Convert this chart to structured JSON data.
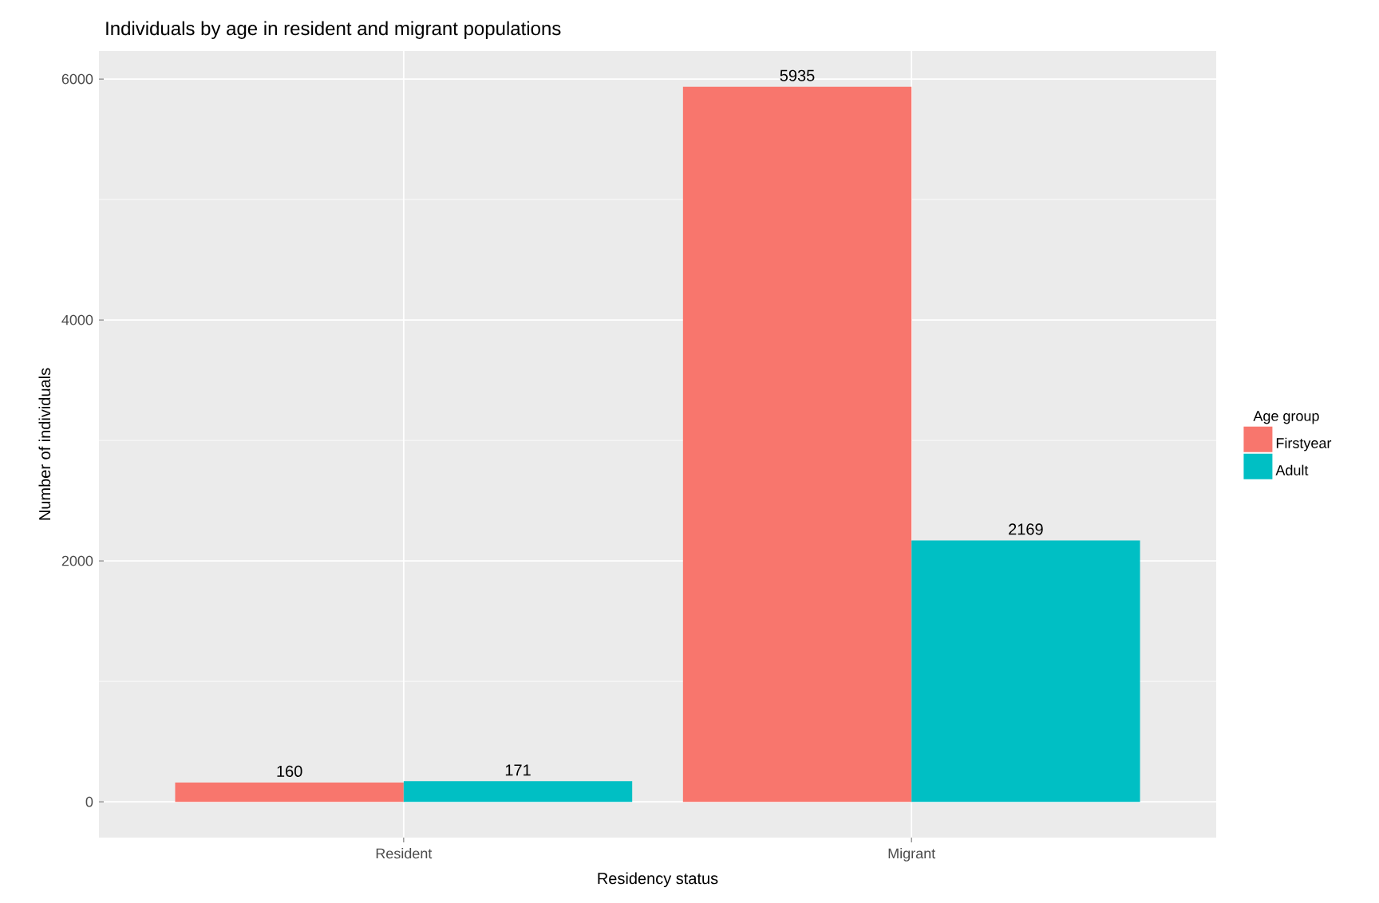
{
  "chart_data": {
    "type": "bar",
    "title": "Individuals by age in resident and migrant populations",
    "xlabel": "Residency status",
    "ylabel": "Number of individuals",
    "legend_title": "Age group",
    "categories": [
      "Resident",
      "Migrant"
    ],
    "series": [
      {
        "name": "Firstyear",
        "color": "#f8766d",
        "values": [
          160,
          5935
        ]
      },
      {
        "name": "Adult",
        "color": "#00bfc4",
        "values": [
          171,
          2169
        ]
      }
    ],
    "ylim": [
      -297,
      6232
    ],
    "yticks": [
      0,
      2000,
      4000,
      6000
    ],
    "grid": true,
    "legend": "right",
    "data_labels": true
  }
}
